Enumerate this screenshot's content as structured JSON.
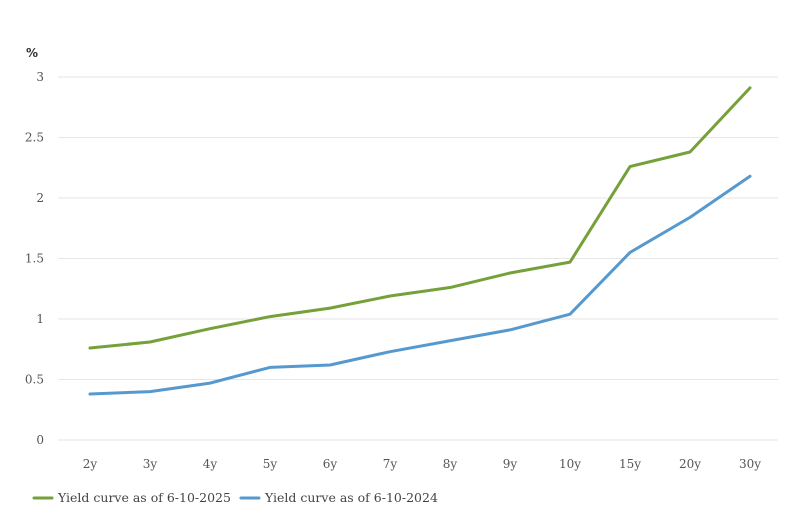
{
  "chart_data": {
    "type": "line",
    "unit_label": "%",
    "categories": [
      "2y",
      "3y",
      "4y",
      "5y",
      "6y",
      "7y",
      "8y",
      "9y",
      "10y",
      "15y",
      "20y",
      "30y"
    ],
    "ylim": [
      0,
      3
    ],
    "yticks": [
      "0",
      "0.5",
      "1",
      "1.5",
      "2",
      "2.5",
      "3"
    ],
    "grid": true,
    "legend_position": "bottom-left",
    "series": [
      {
        "name": "Yield curve as of 6-10-2025",
        "color": "#76a03a",
        "values": [
          0.76,
          0.81,
          0.92,
          1.02,
          1.09,
          1.19,
          1.26,
          1.38,
          1.47,
          2.26,
          2.38,
          2.91
        ]
      },
      {
        "name": "Yield curve as of 6-10-2024",
        "color": "#5699cf",
        "values": [
          0.38,
          0.4,
          0.47,
          0.6,
          0.62,
          0.73,
          0.82,
          0.91,
          1.04,
          1.55,
          1.84,
          2.18
        ]
      }
    ]
  }
}
